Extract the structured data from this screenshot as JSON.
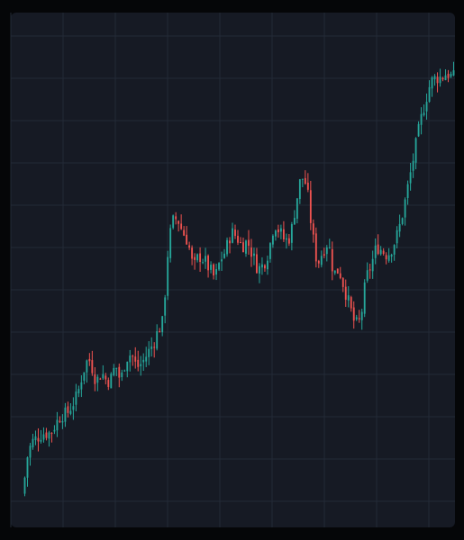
{
  "theme": {
    "frame_color": "#050608",
    "panel_color": "#161a24",
    "grid_color": "#232a36",
    "up_color": "#26a69a",
    "down_color": "#ef5350"
  },
  "chart_data": {
    "type": "candlestick",
    "title": "",
    "xlabel": "",
    "ylabel": "",
    "grid": true,
    "legend": "none",
    "xlim": [
      0,
      160
    ],
    "ylim": [
      0,
      100
    ],
    "close_path": [
      [
        0,
        6
      ],
      [
        1,
        13
      ],
      [
        3,
        17
      ],
      [
        5,
        18
      ],
      [
        7,
        19
      ],
      [
        10,
        19
      ],
      [
        12,
        21
      ],
      [
        14,
        23
      ],
      [
        16,
        23
      ],
      [
        18,
        25
      ],
      [
        20,
        27
      ],
      [
        22,
        32
      ],
      [
        24,
        35
      ],
      [
        25,
        34
      ],
      [
        27,
        30
      ],
      [
        29,
        32
      ],
      [
        31,
        30
      ],
      [
        33,
        31
      ],
      [
        34,
        34
      ],
      [
        36,
        30
      ],
      [
        38,
        35
      ],
      [
        40,
        36
      ],
      [
        42,
        33
      ],
      [
        44,
        34
      ],
      [
        46,
        36
      ],
      [
        48,
        38
      ],
      [
        50,
        41
      ],
      [
        52,
        43
      ],
      [
        53,
        55
      ],
      [
        55,
        64
      ],
      [
        57,
        65
      ],
      [
        59,
        62
      ],
      [
        61,
        60
      ],
      [
        63,
        54
      ],
      [
        65,
        57
      ],
      [
        67,
        56
      ],
      [
        69,
        54
      ],
      [
        71,
        52
      ],
      [
        73,
        56
      ],
      [
        75,
        58
      ],
      [
        77,
        62
      ],
      [
        79,
        61
      ],
      [
        81,
        59
      ],
      [
        83,
        60
      ],
      [
        85,
        57
      ],
      [
        87,
        54
      ],
      [
        89,
        55
      ],
      [
        91,
        58
      ],
      [
        93,
        64
      ],
      [
        95,
        62
      ],
      [
        97,
        60
      ],
      [
        99,
        61
      ],
      [
        101,
        68
      ],
      [
        103,
        74
      ],
      [
        105,
        72
      ],
      [
        107,
        62
      ],
      [
        109,
        55
      ],
      [
        111,
        58
      ],
      [
        113,
        60
      ],
      [
        115,
        53
      ],
      [
        117,
        54
      ],
      [
        119,
        50
      ],
      [
        121,
        46
      ],
      [
        123,
        42
      ],
      [
        125,
        43
      ],
      [
        127,
        52
      ],
      [
        129,
        55
      ],
      [
        131,
        59
      ],
      [
        133,
        58
      ],
      [
        135,
        57
      ],
      [
        137,
        59
      ],
      [
        139,
        62
      ],
      [
        141,
        67
      ],
      [
        143,
        73
      ],
      [
        145,
        79
      ],
      [
        147,
        85
      ],
      [
        149,
        90
      ],
      [
        151,
        94
      ],
      [
        153,
        95
      ],
      [
        155,
        95
      ],
      [
        157,
        96
      ],
      [
        159,
        95
      ]
    ]
  }
}
